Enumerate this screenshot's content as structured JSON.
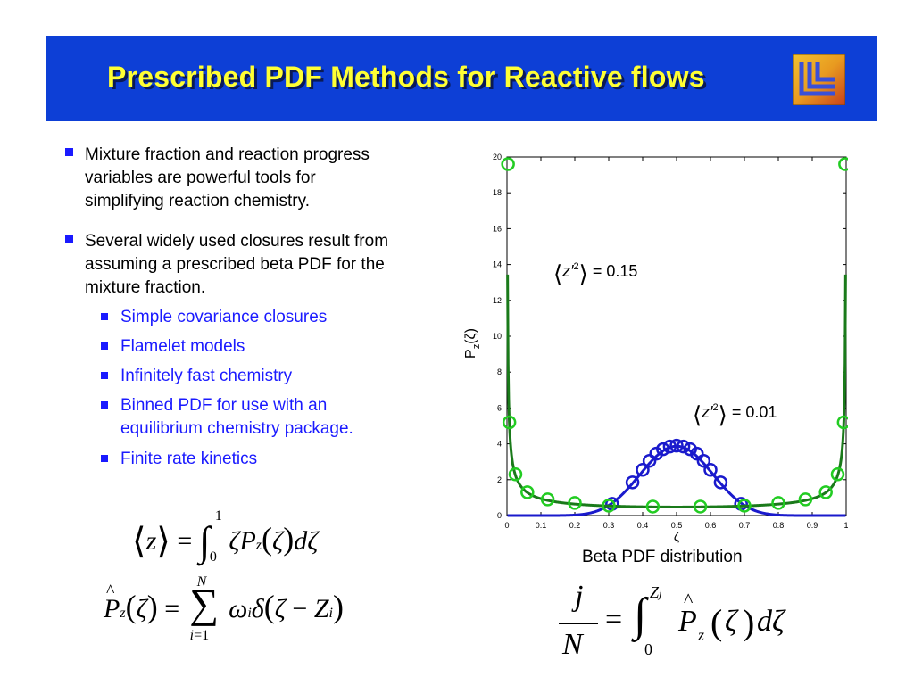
{
  "slide": {
    "title": "Prescribed PDF Methods for Reactive flows",
    "banner_color": "#0d3fd6",
    "title_color": "#ffff33",
    "logo": "llnl-logo-icon"
  },
  "bullets": [
    {
      "text": "Mixture fraction and reaction progress variables are powerful tools for simplifying reaction chemistry.",
      "lines": [
        "Mixture fraction and reaction progress",
        "variables are powerful tools for",
        "simplifying reaction chemistry."
      ]
    },
    {
      "text": "Several widely used closures result from assuming a prescribed beta PDF for the mixture fraction.",
      "lines": [
        "Several widely used closures result from",
        "assuming a prescribed beta PDF for the",
        "mixture fraction."
      ]
    }
  ],
  "sub_bullets": [
    {
      "lines": [
        "Simple covariance closures"
      ]
    },
    {
      "lines": [
        "Flamelet models"
      ]
    },
    {
      "lines": [
        "Infinitely fast chemistry"
      ]
    },
    {
      "lines": [
        "Binned PDF for use with an",
        "equilibrium chemistry package."
      ]
    },
    {
      "lines": [
        "Finite rate kinetics"
      ]
    }
  ],
  "caption": "Beta PDF distribution",
  "equations": {
    "eq1": "⟨z⟩ = ∫₀¹ ζ P_z(ζ) dζ",
    "eq2": "P̂_z(ζ) = Σ_{i=1}^{N} ω_i δ(ζ − Z_i)",
    "eq3": "j/N = ∫₀^{Z_j} P̂_z(ζ) dζ"
  },
  "chart_data": {
    "type": "line",
    "xlabel": "ζ",
    "ylabel": "P_z(ζ)",
    "xlim": [
      0,
      1
    ],
    "ylim": [
      0,
      20
    ],
    "xticks": [
      0,
      0.1,
      0.2,
      0.3,
      0.4,
      0.5,
      0.6,
      0.7,
      0.8,
      0.9,
      1
    ],
    "xtick_labels": [
      "0",
      "0.1",
      "0.2",
      "0.3",
      "0.4",
      "0.5",
      "0.6",
      "0.7",
      "0.8",
      "0.9",
      "1"
    ],
    "yticks": [
      0,
      2,
      4,
      6,
      8,
      10,
      12,
      14,
      16,
      18,
      20
    ],
    "ytick_labels": [
      "0",
      "2",
      "4",
      "6",
      "8",
      "10",
      "12",
      "14",
      "16",
      "18",
      "20"
    ],
    "grid": false,
    "annotations": [
      {
        "text": "⟨z′²⟩ = 0.15",
        "at": [
          0.17,
          13.5
        ]
      },
      {
        "text": "⟨z′²⟩ = 0.01",
        "at": [
          0.57,
          5.5
        ]
      }
    ],
    "series": [
      {
        "color": "#1a1acc",
        "variance": 0.01,
        "marker_color": "#1a1acc",
        "markers": [
          [
            0.31,
            0.65
          ],
          [
            0.37,
            1.85
          ],
          [
            0.4,
            2.55
          ],
          [
            0.42,
            3.05
          ],
          [
            0.44,
            3.45
          ],
          [
            0.46,
            3.7
          ],
          [
            0.48,
            3.85
          ],
          [
            0.5,
            3.9
          ],
          [
            0.52,
            3.85
          ],
          [
            0.54,
            3.7
          ],
          [
            0.56,
            3.45
          ],
          [
            0.58,
            3.05
          ],
          [
            0.6,
            2.55
          ],
          [
            0.63,
            1.85
          ],
          [
            0.69,
            0.65
          ]
        ]
      },
      {
        "color": "#1a7a1a",
        "variance": 0.15,
        "marker_color": "#22cc22",
        "markers": [
          [
            0.003,
            19.6
          ],
          [
            0.007,
            5.2
          ],
          [
            0.025,
            2.3
          ],
          [
            0.06,
            1.3
          ],
          [
            0.12,
            0.9
          ],
          [
            0.2,
            0.7
          ],
          [
            0.3,
            0.55
          ],
          [
            0.43,
            0.5
          ],
          [
            0.57,
            0.5
          ],
          [
            0.7,
            0.55
          ],
          [
            0.8,
            0.7
          ],
          [
            0.88,
            0.9
          ],
          [
            0.94,
            1.3
          ],
          [
            0.975,
            2.3
          ],
          [
            0.993,
            5.2
          ],
          [
            0.997,
            19.6
          ]
        ]
      }
    ]
  }
}
